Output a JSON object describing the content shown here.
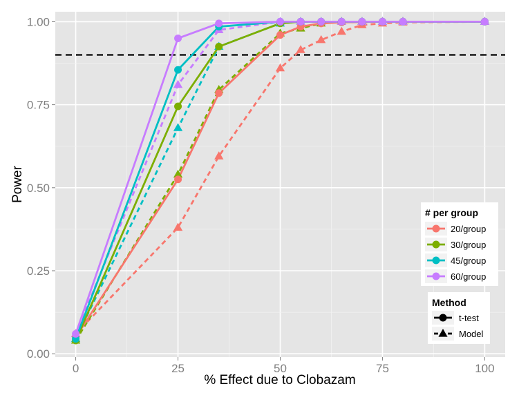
{
  "chart_data": {
    "type": "line",
    "xlabel": "% Effect due to Clobazam",
    "ylabel": "Power",
    "xlim": [
      -5,
      105
    ],
    "ylim": [
      -0.01,
      1.03
    ],
    "x_ticks": [
      0,
      25,
      50,
      75,
      100
    ],
    "y_ticks": [
      0.0,
      0.25,
      0.5,
      0.75,
      1.0
    ],
    "x_tick_labels": [
      "0",
      "25",
      "50",
      "75",
      "100"
    ],
    "y_tick_labels": [
      "0.00",
      "0.25",
      "0.50",
      "0.75",
      "1.00"
    ],
    "grid": true,
    "reference_line": {
      "y": 0.9,
      "style": "dashed",
      "color": "#000000"
    },
    "legend_placement": "right",
    "legends": [
      {
        "title": "# per group",
        "entries": [
          {
            "label": "20/group",
            "color": "#F8766D"
          },
          {
            "label": "30/group",
            "color": "#7CAE00"
          },
          {
            "label": "45/group",
            "color": "#00BFC4"
          },
          {
            "label": "60/group",
            "color": "#C77CFF"
          }
        ]
      },
      {
        "title": "Method",
        "entries": [
          {
            "label": "t-test",
            "linetype": "solid",
            "marker": "circle"
          },
          {
            "label": "Model",
            "linetype": "dashed",
            "marker": "triangle"
          }
        ]
      }
    ],
    "series": [
      {
        "group": "20/group",
        "method": "t-test",
        "color": "#F8766D",
        "x": [
          0,
          25,
          35,
          50,
          55,
          60,
          65,
          70,
          75,
          80,
          100
        ],
        "y": [
          0.05,
          0.525,
          0.785,
          0.96,
          0.985,
          0.995,
          0.998,
          0.999,
          1.0,
          1.0,
          1.0
        ]
      },
      {
        "group": "20/group",
        "method": "Model",
        "color": "#F8766D",
        "x": [
          0,
          25,
          35,
          50,
          55,
          60,
          65,
          70,
          75,
          80,
          100
        ],
        "y": [
          0.06,
          0.38,
          0.595,
          0.86,
          0.915,
          0.945,
          0.97,
          0.99,
          0.995,
          0.998,
          1.0
        ]
      },
      {
        "group": "30/group",
        "method": "t-test",
        "color": "#7CAE00",
        "x": [
          0,
          25,
          35,
          50,
          55,
          60,
          65,
          70,
          75,
          80,
          100
        ],
        "y": [
          0.04,
          0.745,
          0.925,
          0.995,
          1.0,
          1.0,
          1.0,
          1.0,
          1.0,
          1.0,
          1.0
        ]
      },
      {
        "group": "30/group",
        "method": "Model",
        "color": "#7CAE00",
        "x": [
          0,
          25,
          35,
          50,
          55,
          60,
          65,
          70,
          75,
          80,
          100
        ],
        "y": [
          0.04,
          0.54,
          0.795,
          0.965,
          0.98,
          0.995,
          1.0,
          1.0,
          1.0,
          1.0,
          1.0
        ]
      },
      {
        "group": "45/group",
        "method": "t-test",
        "color": "#00BFC4",
        "x": [
          0,
          25,
          35,
          50,
          55,
          60,
          65,
          70,
          75,
          80,
          100
        ],
        "y": [
          0.045,
          0.855,
          0.985,
          1.0,
          1.0,
          1.0,
          1.0,
          1.0,
          1.0,
          1.0,
          1.0
        ]
      },
      {
        "group": "45/group",
        "method": "Model",
        "color": "#00BFC4",
        "x": [
          0,
          25,
          35,
          50,
          55,
          60,
          65,
          70,
          75,
          80,
          100
        ],
        "y": [
          0.045,
          0.68,
          0.925,
          0.995,
          1.0,
          1.0,
          1.0,
          1.0,
          1.0,
          1.0,
          1.0
        ]
      },
      {
        "group": "60/group",
        "method": "t-test",
        "color": "#C77CFF",
        "x": [
          0,
          25,
          35,
          50,
          55,
          60,
          65,
          70,
          75,
          80,
          100
        ],
        "y": [
          0.06,
          0.95,
          0.995,
          1.0,
          1.0,
          1.0,
          1.0,
          1.0,
          1.0,
          1.0,
          1.0
        ]
      },
      {
        "group": "60/group",
        "method": "Model",
        "color": "#C77CFF",
        "x": [
          0,
          25,
          35,
          50,
          55,
          60,
          65,
          70,
          75,
          80,
          100
        ],
        "y": [
          0.06,
          0.81,
          0.975,
          1.0,
          1.0,
          1.0,
          1.0,
          1.0,
          1.0,
          1.0,
          1.0
        ]
      }
    ]
  }
}
